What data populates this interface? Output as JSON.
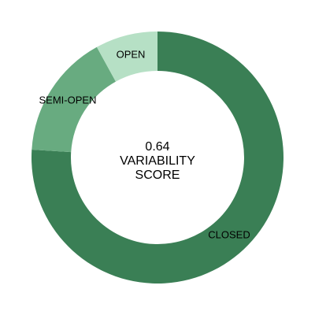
{
  "chart_data": {
    "type": "pie",
    "donut": true,
    "categories": [
      "CLOSED",
      "SEMI-OPEN",
      "OPEN"
    ],
    "values": [
      0.76,
      0.16,
      0.08
    ],
    "colors": [
      "#3a7f55",
      "#68ab80",
      "#b6e0c5"
    ],
    "start_angle_deg": 0,
    "direction": "clockwise",
    "center_label": {
      "value": "0.64",
      "line1": "VARIABILITY",
      "line2": "SCORE"
    }
  }
}
